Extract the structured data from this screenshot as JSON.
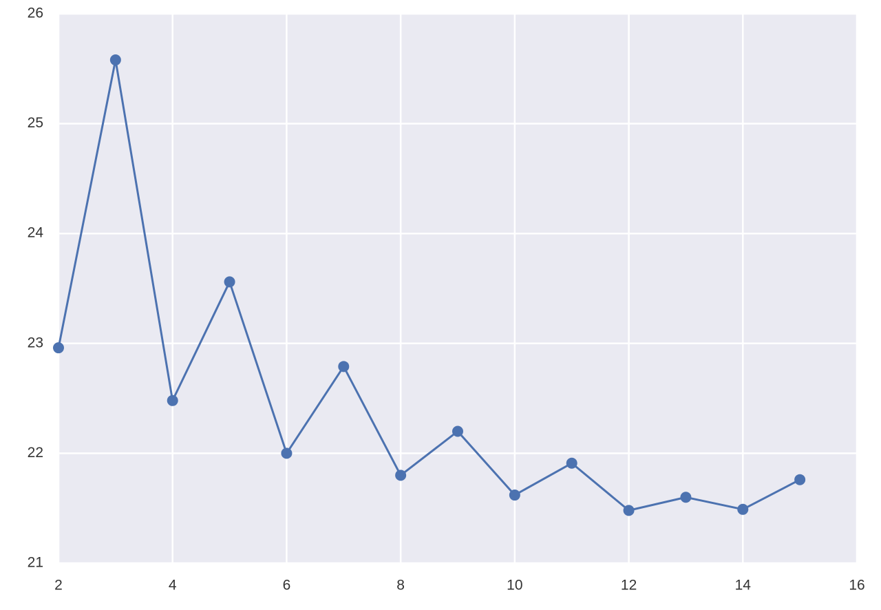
{
  "chart_data": {
    "type": "line",
    "x": [
      2,
      3,
      4,
      5,
      6,
      7,
      8,
      9,
      10,
      11,
      12,
      13,
      14,
      15
    ],
    "series": [
      {
        "color": "#4c72b0",
        "values": [
          22.96,
          25.58,
          22.48,
          23.56,
          22.0,
          22.79,
          21.8,
          22.2,
          21.62,
          21.91,
          21.48,
          21.6,
          21.49,
          21.76
        ]
      }
    ],
    "xlim": [
      2,
      16
    ],
    "xticks": [
      2,
      4,
      6,
      8,
      10,
      12,
      14,
      16
    ],
    "ylim": [
      21,
      26
    ],
    "yticks": [
      21,
      22,
      23,
      24,
      25,
      26
    ],
    "grid": true,
    "markers": true
  }
}
